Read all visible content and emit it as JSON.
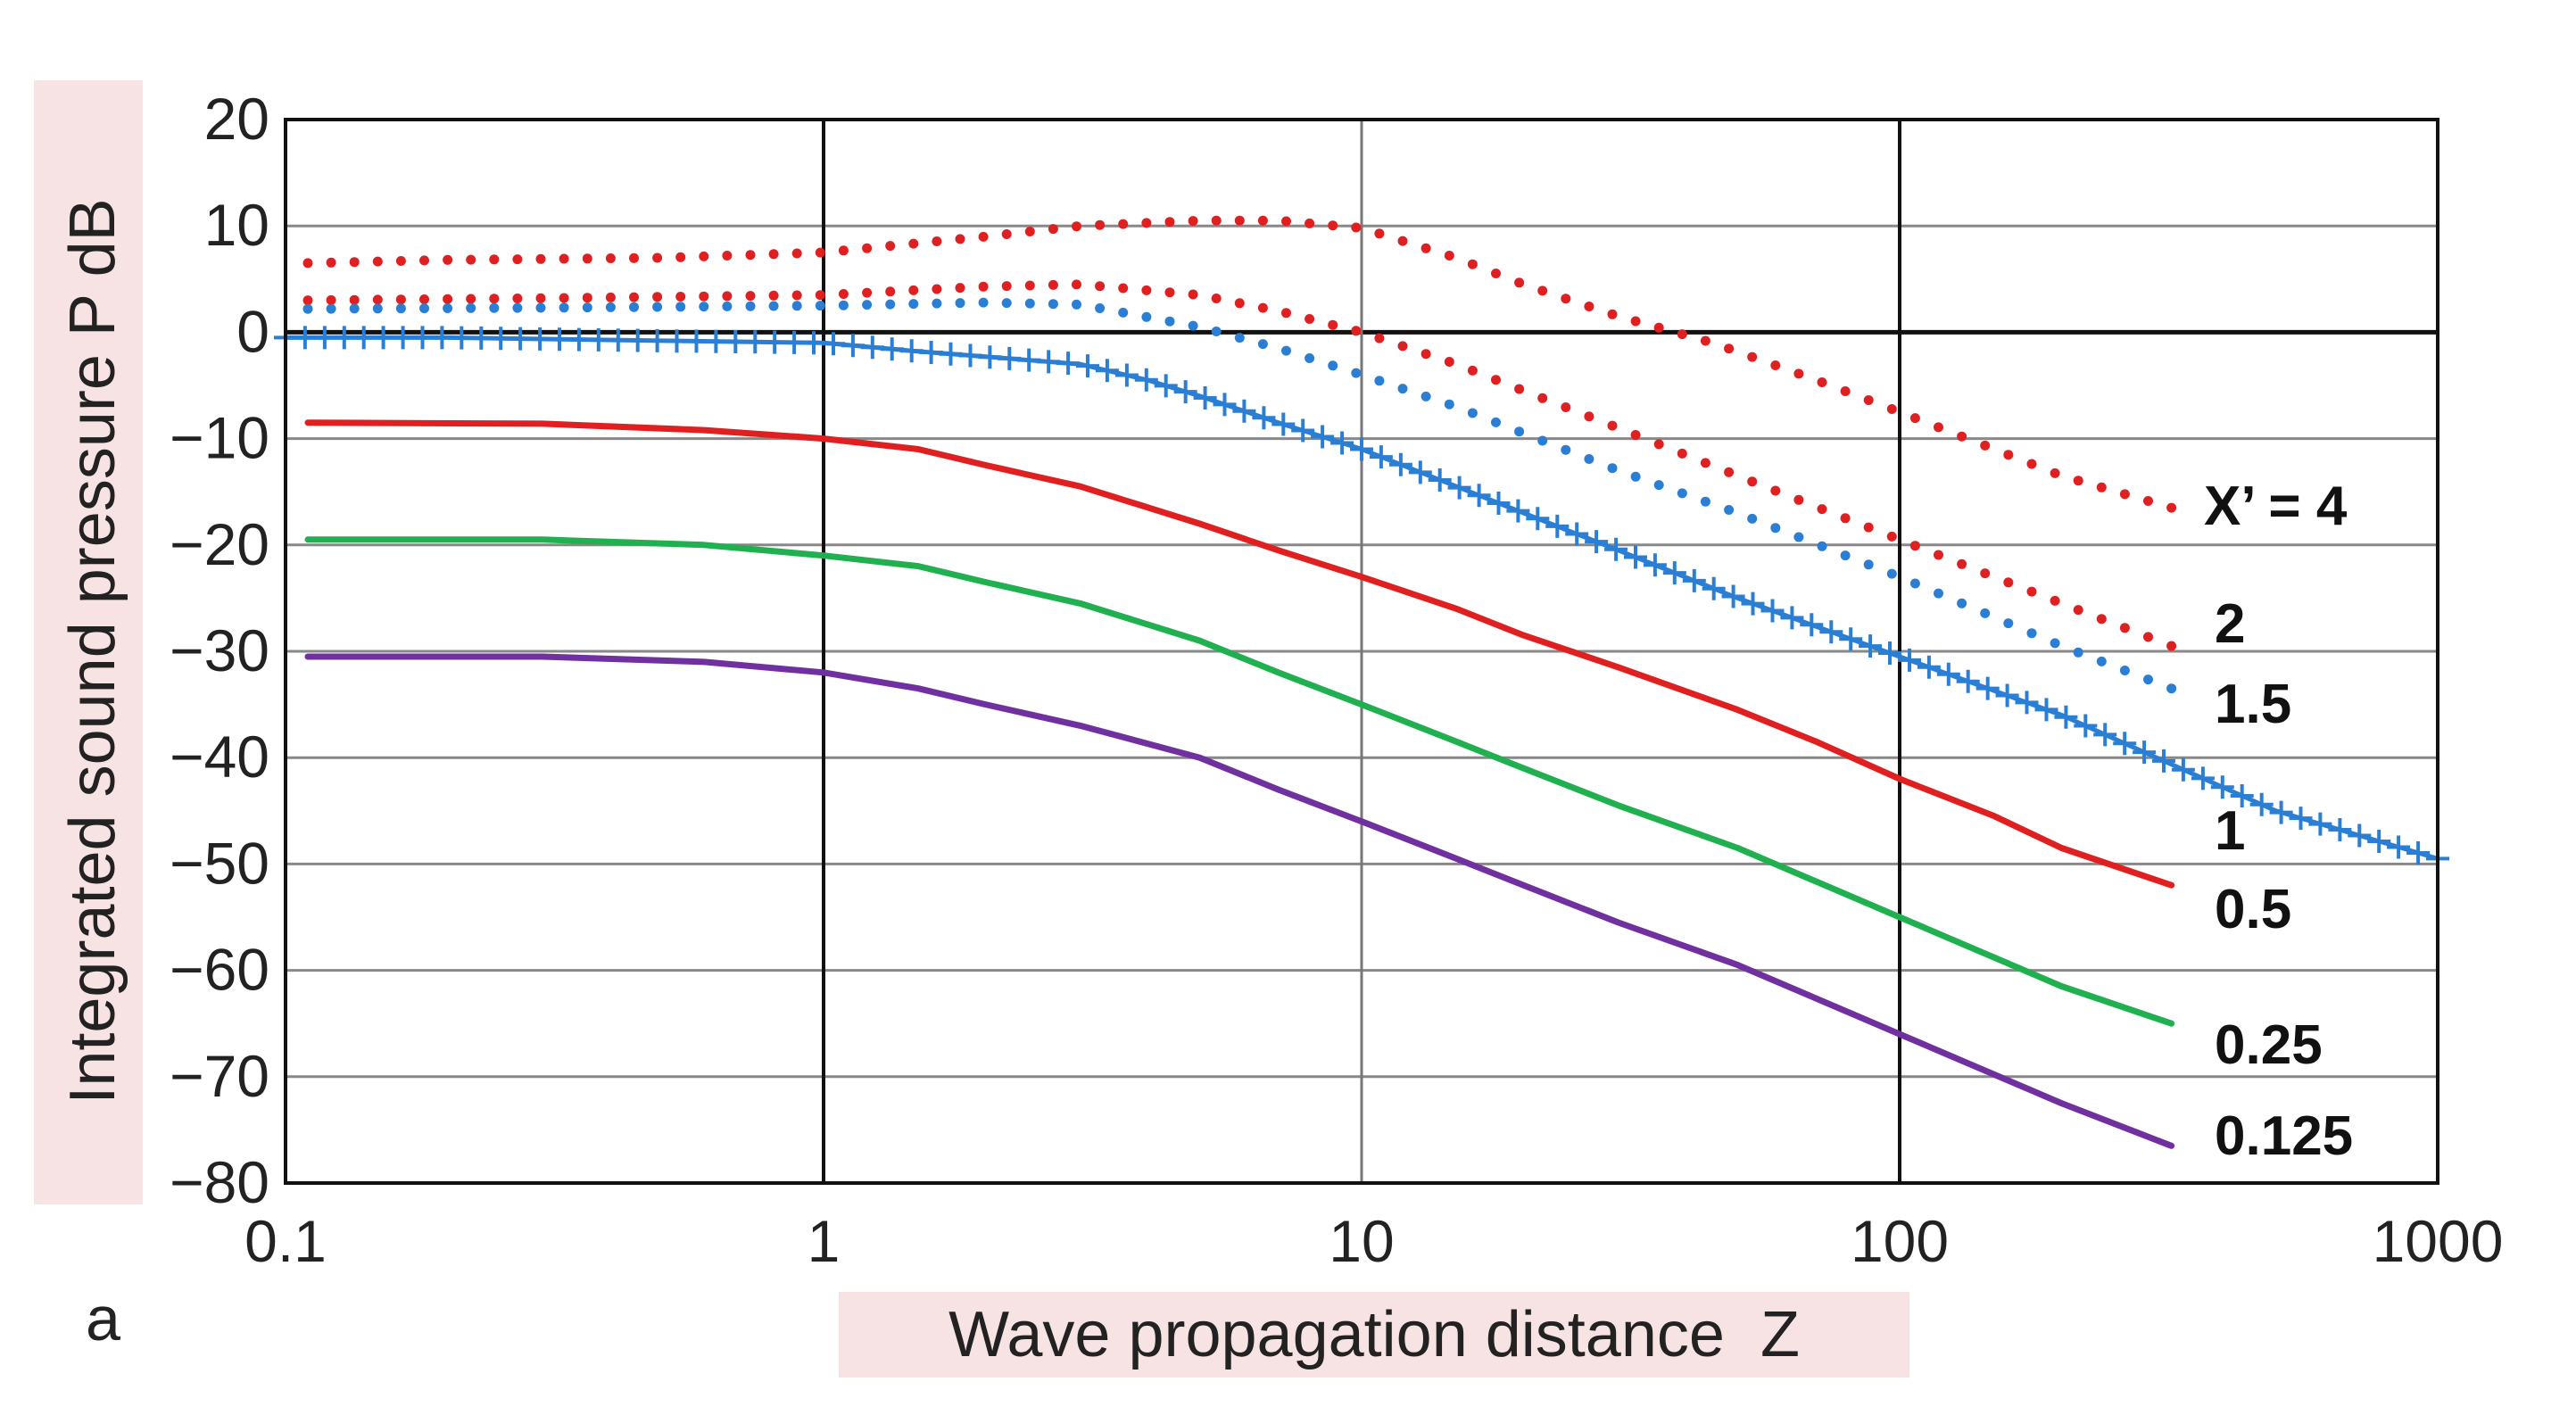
{
  "chart_data": {
    "type": "line",
    "title": "",
    "panel_label": "a",
    "xlabel": "Wave propagation distance  Z",
    "ylabel": "Integrated sound pressure  P  dB",
    "xscale": "log",
    "xlim": [
      0.1,
      1000
    ],
    "ylim": [
      -80,
      20
    ],
    "xticks": [
      0.1,
      1,
      10,
      100,
      1000
    ],
    "xtick_labels": [
      "0.1",
      "1",
      "10",
      "100",
      "1000"
    ],
    "yticks": [
      20,
      10,
      0,
      -10,
      -20,
      -30,
      -40,
      -50,
      -60,
      -70,
      -80
    ],
    "ytick_labels": [
      "20",
      "10",
      "0",
      "−10",
      "−20",
      "−30",
      "−40",
      "−50",
      "−60",
      "−70",
      "−80"
    ],
    "grid": true,
    "series": [
      {
        "name": "X’ = 4",
        "label": "X’ = 4",
        "style": "dotted",
        "color": "#e02020",
        "x": [
          0.11,
          0.2,
          0.5,
          1,
          2,
          3,
          5,
          7,
          10,
          15,
          20,
          30,
          45,
          70,
          100,
          150,
          200,
          320
        ],
        "y": [
          6.5,
          6.8,
          7.0,
          7.5,
          9.0,
          10.0,
          10.5,
          10.5,
          9.8,
          7.0,
          4.5,
          1.5,
          -1.0,
          -4.5,
          -7.5,
          -11.0,
          -13.5,
          -16.5
        ]
      },
      {
        "name": "2",
        "label": "2",
        "style": "dotted",
        "color": "#e02020",
        "x": [
          0.11,
          0.3,
          1,
          2,
          3,
          5,
          7,
          10,
          15,
          20,
          30,
          50,
          100,
          200,
          320
        ],
        "y": [
          3.0,
          3.2,
          3.5,
          4.3,
          4.5,
          3.5,
          2.0,
          0.0,
          -3.0,
          -5.5,
          -9.0,
          -13.5,
          -19.5,
          -25.5,
          -29.5
        ]
      },
      {
        "name": "1.5",
        "label": "1.5",
        "style": "dotted",
        "color": "#2a7fd4",
        "x": [
          0.11,
          0.3,
          1,
          2,
          3,
          5,
          7,
          10,
          15,
          20,
          30,
          50,
          100,
          200,
          320
        ],
        "y": [
          2.2,
          2.3,
          2.5,
          2.8,
          2.6,
          0.5,
          -1.5,
          -4.0,
          -7.0,
          -9.5,
          -13.0,
          -17.0,
          -23.0,
          -29.5,
          -33.5
        ]
      },
      {
        "name": "1",
        "label": "1",
        "style": "plus",
        "color": "#2a7fd4",
        "x": [
          0.1,
          0.2,
          0.5,
          1,
          1.5,
          2,
          3,
          4,
          5,
          7,
          10,
          15,
          20,
          30,
          50,
          100,
          200,
          300,
          500,
          1000
        ],
        "y": [
          -0.5,
          -0.5,
          -0.8,
          -1.0,
          -1.8,
          -2.3,
          -3.0,
          -4.5,
          -6.0,
          -8.5,
          -11.0,
          -14.5,
          -17.0,
          -20.5,
          -25.0,
          -30.5,
          -36.0,
          -40.0,
          -45.0,
          -49.5
        ]
      },
      {
        "name": "0.5",
        "label": "0.5",
        "style": "solid",
        "color": "#e02020",
        "x": [
          0.11,
          0.3,
          0.6,
          1,
          1.5,
          2,
          3,
          5,
          7,
          10,
          15,
          20,
          30,
          50,
          70,
          100,
          150,
          200,
          320
        ],
        "y": [
          -8.5,
          -8.6,
          -9.2,
          -10.0,
          -11.0,
          -12.5,
          -14.5,
          -18.0,
          -20.5,
          -23.0,
          -26.0,
          -28.5,
          -31.5,
          -35.5,
          -38.5,
          -42.0,
          -45.5,
          -48.5,
          -52.0
        ]
      },
      {
        "name": "0.25",
        "label": "0.25",
        "style": "solid",
        "color": "#20b050",
        "x": [
          0.11,
          0.3,
          0.6,
          1,
          1.5,
          2,
          3,
          5,
          7,
          10,
          15,
          20,
          30,
          50,
          100,
          200,
          320
        ],
        "y": [
          -19.5,
          -19.5,
          -20.0,
          -21.0,
          -22.0,
          -23.5,
          -25.5,
          -29.0,
          -32.0,
          -35.0,
          -38.5,
          -41.0,
          -44.5,
          -48.5,
          -55.0,
          -61.5,
          -65.0
        ]
      },
      {
        "name": "0.125",
        "label": "0.125",
        "style": "solid",
        "color": "#7030a0",
        "x": [
          0.11,
          0.3,
          0.6,
          1,
          1.5,
          2,
          3,
          5,
          7,
          10,
          15,
          20,
          30,
          50,
          100,
          200,
          320
        ],
        "y": [
          -30.5,
          -30.5,
          -31.0,
          -32.0,
          -33.5,
          -35.0,
          -37.0,
          -40.0,
          -43.0,
          -46.0,
          -49.5,
          -52.0,
          -55.5,
          -59.5,
          -66.0,
          -72.5,
          -76.5
        ]
      }
    ]
  }
}
